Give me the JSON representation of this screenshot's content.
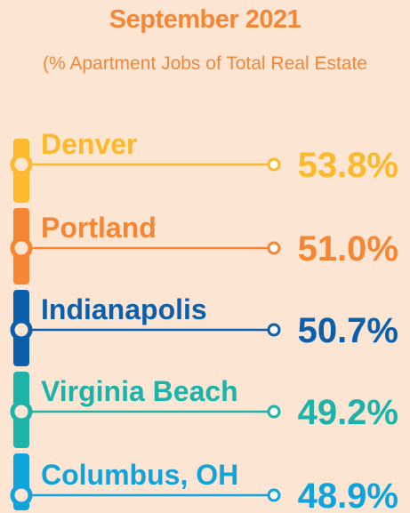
{
  "chart_data": {
    "type": "bar",
    "title": "September 2021",
    "subtitle": "(% Apartment Jobs of Total Real Estate",
    "categories": [
      "Denver",
      "Portland",
      "Indianapolis",
      "Virginia Beach",
      "Columbus, OH"
    ],
    "values": [
      53.8,
      51.0,
      50.7,
      49.2,
      48.9
    ],
    "value_labels": [
      "53.8%",
      "51.0%",
      "50.7%",
      "49.2%",
      "48.9%"
    ],
    "unit": "%",
    "colors": [
      "#fbb92b",
      "#f58634",
      "#0b5fab",
      "#1db3a9",
      "#11a4dc"
    ]
  }
}
